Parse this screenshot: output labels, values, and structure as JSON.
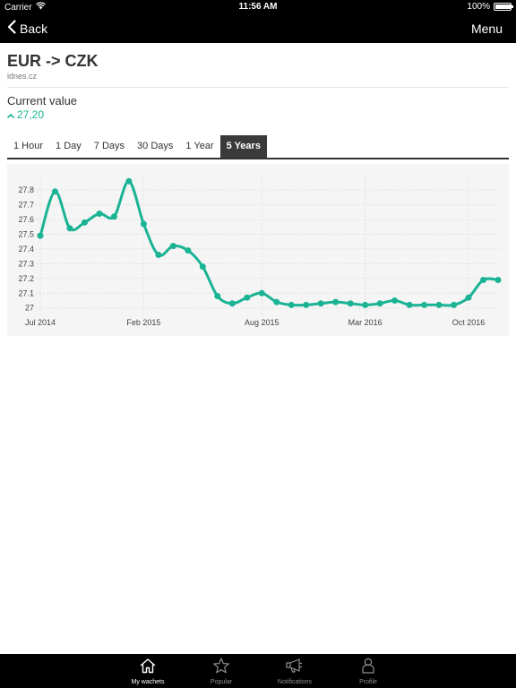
{
  "status_bar": {
    "carrier": "Carrier",
    "time": "11:56 AM",
    "battery": "100%",
    "battery_level": 1.0
  },
  "nav": {
    "back_label": "Back",
    "menu_label": "Menu"
  },
  "pair": {
    "title": "EUR -> CZK",
    "source": "idnes.cz"
  },
  "current": {
    "label": "Current value",
    "value": "27,20",
    "trend": "up"
  },
  "tabs": [
    {
      "label": "1 Hour",
      "active": false
    },
    {
      "label": "1 Day",
      "active": false
    },
    {
      "label": "7 Days",
      "active": false
    },
    {
      "label": "30 Days",
      "active": false
    },
    {
      "label": "1 Year",
      "active": false
    },
    {
      "label": "5 Years",
      "active": true
    }
  ],
  "chart_data": {
    "type": "line",
    "title": "",
    "xlabel": "",
    "ylabel": "",
    "ylim": [
      26.98,
      27.88
    ],
    "yticks": [
      27,
      27.1,
      27.2,
      27.3,
      27.4,
      27.5,
      27.6,
      27.7,
      27.8
    ],
    "xticks": [
      {
        "label": "Jul 2014",
        "index": 0
      },
      {
        "label": "Feb 2015",
        "index": 7
      },
      {
        "label": "Aug 2015",
        "index": 15
      },
      {
        "label": "Mar 2016",
        "index": 22
      },
      {
        "label": "Oct 2016",
        "index": 29
      }
    ],
    "grid": true,
    "color": "#1ab394",
    "series": [
      {
        "values": [
          27.49,
          27.79,
          27.54,
          27.58,
          27.64,
          27.62,
          27.86,
          27.57,
          27.36,
          27.42,
          27.39,
          27.28,
          27.08,
          27.03,
          27.07,
          27.1,
          27.04,
          27.02,
          27.02,
          27.03,
          27.04,
          27.03,
          27.02,
          27.03,
          27.05,
          27.02,
          27.02,
          27.02,
          27.02,
          27.07,
          27.19,
          27.19
        ]
      }
    ]
  },
  "tab_bar": {
    "items": [
      {
        "label": "My wachets",
        "icon": "home-icon",
        "active": true
      },
      {
        "label": "Popular",
        "icon": "star-icon",
        "active": false
      },
      {
        "label": "Notifications",
        "icon": "megaphone-icon",
        "active": false
      },
      {
        "label": "Profile",
        "icon": "person-icon",
        "active": false
      }
    ]
  }
}
